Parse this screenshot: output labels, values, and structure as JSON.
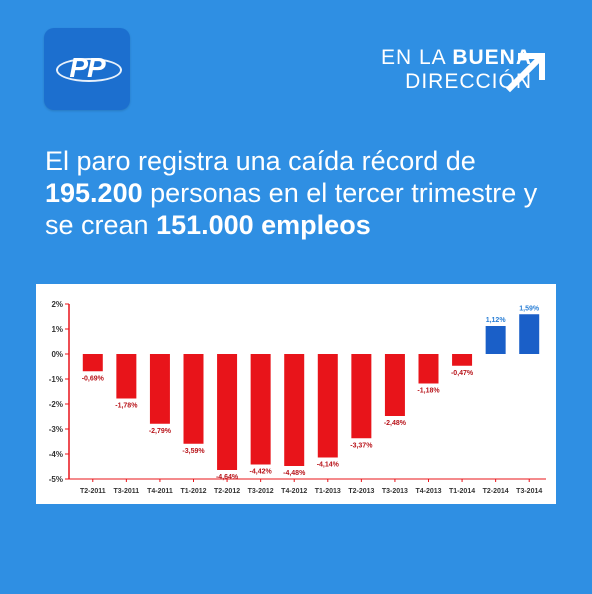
{
  "brand": {
    "logo_text": "PP"
  },
  "slogan": {
    "line1_prefix": "EN LA ",
    "line1_bold": "BUENA",
    "line2": "DIRECCIÓN"
  },
  "headline": {
    "part1": "El paro registra una caída récord de ",
    "bold1": "195.200",
    "part2": " personas en el tercer trimestre y se crean ",
    "bold2": "151.000 empleos"
  },
  "colors": {
    "background": "#2f8fe3",
    "negative_bar": "#e8141a",
    "positive_bar": "#1a5fc8",
    "negative_label": "#b8141a",
    "positive_label": "#2a7fd6"
  },
  "chart_data": {
    "type": "bar",
    "categories": [
      "T2-2011",
      "T3-2011",
      "T4-2011",
      "T1-2012",
      "T2-2012",
      "T3-2012",
      "T4-2012",
      "T1-2013",
      "T2-2013",
      "T3-2013",
      "T4-2013",
      "T1-2014",
      "T2-2014",
      "T3-2014"
    ],
    "values": [
      -0.69,
      -1.78,
      -2.79,
      -3.59,
      -4.64,
      -4.42,
      -4.48,
      -4.14,
      -3.37,
      -2.48,
      -1.18,
      -0.47,
      1.12,
      1.59
    ],
    "value_labels": [
      "-0,69%",
      "-1,78%",
      "-2,79%",
      "-3,59%",
      "-4,64%",
      "-4,42%",
      "-4,48%",
      "-4,14%",
      "-3,37%",
      "-2,48%",
      "-1,18%",
      "-0,47%",
      "1,12%",
      "1,59%"
    ],
    "y_ticks": [
      2,
      1,
      0,
      -1,
      -2,
      -3,
      -4,
      -5
    ],
    "y_tick_labels": [
      "2%",
      "1%",
      "0%",
      "-1%",
      "-2%",
      "-3%",
      "-4%",
      "-5%"
    ],
    "ylim": [
      -5,
      2
    ],
    "grid": false
  }
}
